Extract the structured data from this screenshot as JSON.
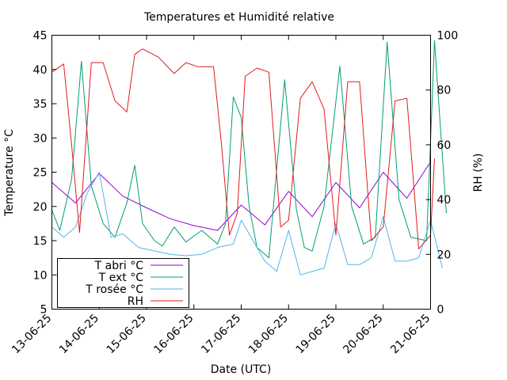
{
  "chart_data": {
    "type": "line",
    "title": "Temperatures et Humidité relative",
    "xlabel": "Date (UTC)",
    "ylabel": "Temperature °C",
    "y2label": "RH (%)",
    "xlim": [
      "2025-06-13",
      "2025-06-21"
    ],
    "ylim": [
      5,
      45
    ],
    "y2lim": [
      0,
      100
    ],
    "x_ticks": [
      "13-06-25",
      "14-06-25",
      "15-06-25",
      "16-06-25",
      "17-06-25",
      "18-06-25",
      "19-06-25",
      "20-06-25",
      "21-06-25"
    ],
    "y_ticks": [
      5,
      10,
      15,
      20,
      25,
      30,
      35,
      40,
      45
    ],
    "y2_ticks": [
      0,
      20,
      40,
      60,
      80,
      100
    ],
    "grid": false,
    "legend_position": "bottom-left",
    "series": [
      {
        "name": "T abri °C",
        "axis": "y",
        "color": "#9400d3",
        "x": [
          "2025-06-13T00:00",
          "2025-06-13T12:00",
          "2025-06-14T00:00",
          "2025-06-14T12:00",
          "2025-06-15T00:00",
          "2025-06-15T12:00",
          "2025-06-16T00:00",
          "2025-06-16T12:00",
          "2025-06-17T00:00",
          "2025-06-17T12:00",
          "2025-06-18T00:00",
          "2025-06-18T12:00",
          "2025-06-19T00:00",
          "2025-06-19T12:00",
          "2025-06-20T00:00",
          "2025-06-20T12:00",
          "2025-06-21T00:00"
        ],
        "values": [
          23.5,
          20.5,
          24.8,
          21.5,
          19.8,
          18.2,
          17.2,
          16.5,
          20.2,
          17.3,
          22.2,
          18.5,
          23.5,
          19.8,
          25.0,
          21.2,
          26.5
        ]
      },
      {
        "name": "T ext °C",
        "axis": "y",
        "color": "#009e73",
        "x": [
          "2025-06-13T00:00",
          "2025-06-13T04:00",
          "2025-06-13T10:00",
          "2025-06-13T15:00",
          "2025-06-13T20:00",
          "2025-06-14T02:00",
          "2025-06-14T08:00",
          "2025-06-14T14:00",
          "2025-06-14T18:00",
          "2025-06-14T22:00",
          "2025-06-15T04:00",
          "2025-06-15T08:00",
          "2025-06-15T14:00",
          "2025-06-15T20:00",
          "2025-06-16T04:00",
          "2025-06-16T12:00",
          "2025-06-16T16:00",
          "2025-06-16T20:00",
          "2025-06-17T00:00",
          "2025-06-17T04:00",
          "2025-06-17T08:00",
          "2025-06-17T14:00",
          "2025-06-17T22:00",
          "2025-06-18T04:00",
          "2025-06-18T08:00",
          "2025-06-18T12:00",
          "2025-06-18T18:00",
          "2025-06-19T02:00",
          "2025-06-19T08:00",
          "2025-06-19T14:00",
          "2025-06-19T20:00",
          "2025-06-20T02:00",
          "2025-06-20T08:00",
          "2025-06-20T14:00",
          "2025-06-20T22:00",
          "2025-06-21T02:00",
          "2025-06-21T08:00"
        ],
        "values": [
          19.5,
          16.5,
          24.0,
          41.2,
          23.0,
          17.5,
          15.5,
          20.5,
          26.0,
          17.5,
          15.0,
          14.2,
          17.0,
          14.8,
          16.5,
          14.5,
          17.5,
          36.0,
          33.0,
          20.0,
          14.0,
          12.5,
          38.5,
          19.5,
          14.0,
          13.5,
          20.0,
          40.5,
          20.0,
          14.5,
          15.5,
          44.0,
          21.0,
          15.5,
          15.0,
          44.2,
          19.0
        ]
      },
      {
        "name": "T rosée °C",
        "axis": "y",
        "color": "#56b4e9",
        "x": [
          "2025-06-13T00:00",
          "2025-06-13T06:00",
          "2025-06-13T12:00",
          "2025-06-13T18:00",
          "2025-06-14T00:00",
          "2025-06-14T06:00",
          "2025-06-14T12:00",
          "2025-06-14T20:00",
          "2025-06-15T04:00",
          "2025-06-15T12:00",
          "2025-06-15T20:00",
          "2025-06-16T04:00",
          "2025-06-16T12:00",
          "2025-06-16T20:00",
          "2025-06-17T00:00",
          "2025-06-17T06:00",
          "2025-06-17T12:00",
          "2025-06-17T18:00",
          "2025-06-18T00:00",
          "2025-06-18T06:00",
          "2025-06-18T12:00",
          "2025-06-18T18:00",
          "2025-06-19T00:00",
          "2025-06-19T06:00",
          "2025-06-19T12:00",
          "2025-06-19T18:00",
          "2025-06-20T00:00",
          "2025-06-20T06:00",
          "2025-06-20T12:00",
          "2025-06-20T18:00",
          "2025-06-21T00:00",
          "2025-06-21T06:00"
        ],
        "values": [
          17.0,
          15.5,
          17.0,
          22.0,
          25.0,
          15.5,
          16.0,
          14.0,
          13.5,
          13.0,
          12.8,
          13.0,
          14.0,
          14.5,
          18.0,
          15.0,
          12.0,
          10.5,
          16.5,
          10.0,
          10.5,
          11.0,
          17.5,
          11.5,
          11.5,
          12.5,
          18.5,
          12.0,
          12.0,
          12.5,
          18.0,
          11.0
        ]
      },
      {
        "name": "RH",
        "axis": "y2",
        "color": "#e41a1c",
        "x": [
          "2025-06-13T00:00",
          "2025-06-13T06:00",
          "2025-06-13T10:00",
          "2025-06-13T14:00",
          "2025-06-13T20:00",
          "2025-06-14T02:00",
          "2025-06-14T08:00",
          "2025-06-14T14:00",
          "2025-06-14T18:00",
          "2025-06-14T22:00",
          "2025-06-15T06:00",
          "2025-06-15T14:00",
          "2025-06-15T20:00",
          "2025-06-16T02:00",
          "2025-06-16T10:00",
          "2025-06-16T14:00",
          "2025-06-16T18:00",
          "2025-06-16T22:00",
          "2025-06-17T02:00",
          "2025-06-17T08:00",
          "2025-06-17T14:00",
          "2025-06-17T20:00",
          "2025-06-18T00:00",
          "2025-06-18T06:00",
          "2025-06-18T12:00",
          "2025-06-18T18:00",
          "2025-06-19T00:00",
          "2025-06-19T06:00",
          "2025-06-19T12:00",
          "2025-06-19T18:00",
          "2025-06-20T00:00",
          "2025-06-20T06:00",
          "2025-06-20T12:00",
          "2025-06-20T18:00",
          "2025-06-21T00:00",
          "2025-06-21T02:00"
        ],
        "values": [
          86.5,
          89.5,
          60.0,
          28.0,
          90.0,
          90.0,
          76.0,
          72.0,
          93.0,
          95.0,
          92.0,
          86.0,
          90.0,
          88.5,
          88.5,
          60.0,
          27.0,
          35.0,
          85.0,
          88.0,
          86.5,
          30.0,
          32.5,
          77.0,
          83.0,
          73.0,
          27.0,
          83.0,
          83.0,
          25.0,
          30.0,
          76.0,
          77.0,
          22.0,
          27.0,
          55.0
        ]
      }
    ]
  }
}
